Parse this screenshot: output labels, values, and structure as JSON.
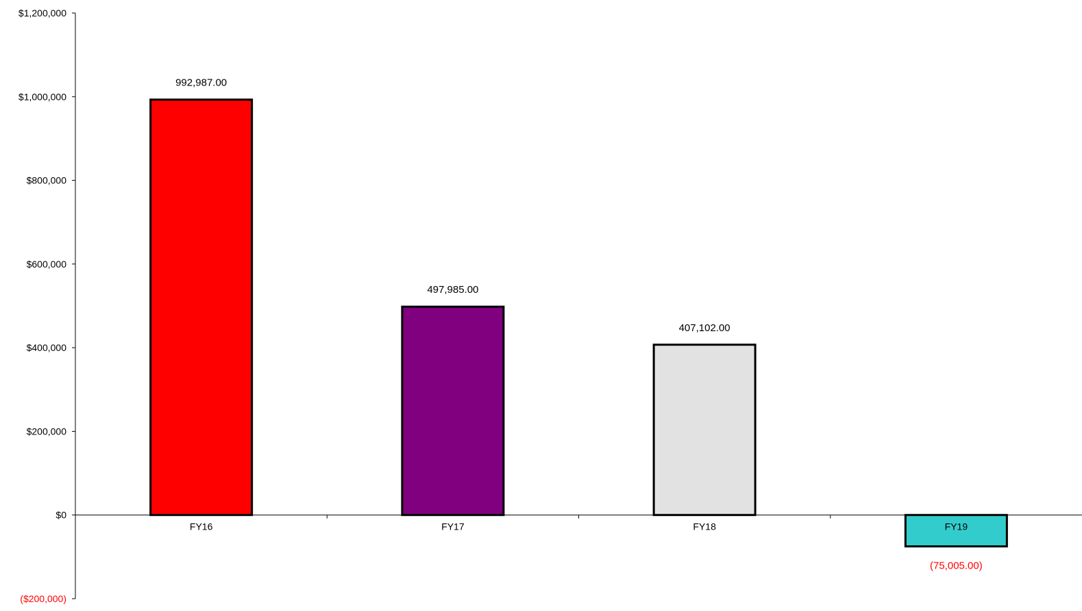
{
  "chart_data": {
    "type": "bar",
    "title": "",
    "xlabel": "",
    "ylabel": "",
    "categories": [
      "FY16",
      "FY17",
      "FY18",
      "FY19"
    ],
    "values": [
      992987,
      497985,
      407102,
      -75005
    ],
    "data_labels": [
      "992,987.00",
      "497,985.00",
      "407,102.00",
      "(75,005.00)"
    ],
    "bar_colors": [
      "#ff0000",
      "#800080",
      "#e2e2e2",
      "#33cccc"
    ],
    "negative_label_color": "#ff0000",
    "ylim": [
      -200000,
      1200000
    ],
    "yticks": [
      -200000,
      0,
      200000,
      400000,
      600000,
      800000,
      1000000,
      1200000
    ],
    "ytick_labels": [
      "($200,000)",
      "$0",
      "$200,000",
      "$400,000",
      "$600,000",
      "$800,000",
      "$1,000,000",
      "$1,200,000"
    ],
    "grid": false,
    "legend": "none"
  }
}
